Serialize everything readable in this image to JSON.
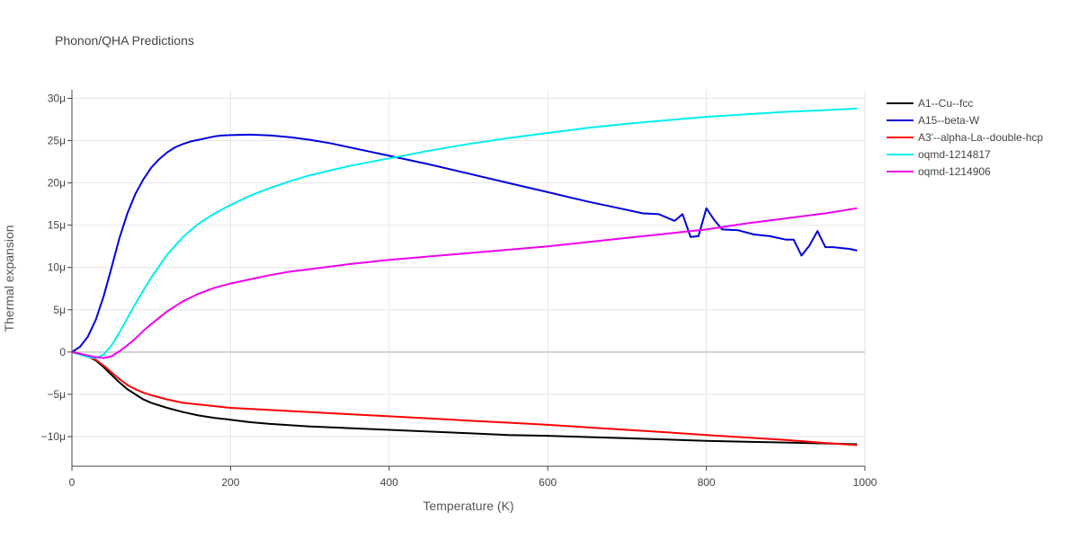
{
  "chart_data": {
    "type": "line",
    "title": "Phonon/QHA Predictions",
    "xlabel": "Temperature (K)",
    "ylabel": "Thermal expansion",
    "xlim": [
      0,
      1000
    ],
    "ylim": [
      -13.5,
      31
    ],
    "x_ticks": [
      0,
      200,
      400,
      600,
      800,
      1000
    ],
    "x_tick_labels": [
      "0",
      "200",
      "400",
      "600",
      "800",
      "1000"
    ],
    "y_ticks": [
      -10,
      -5,
      0,
      5,
      10,
      15,
      20,
      25,
      30
    ],
    "y_tick_labels": [
      "−10μ",
      "−5μ",
      "0",
      "5μ",
      "10μ",
      "15μ",
      "20μ",
      "25μ",
      "30μ"
    ],
    "grid": true,
    "legend_position": "top-right",
    "series": [
      {
        "name": "A1--Cu--fcc",
        "color": "#000000",
        "x": [
          0,
          10,
          20,
          30,
          40,
          50,
          60,
          70,
          80,
          90,
          100,
          120,
          140,
          160,
          180,
          200,
          225,
          250,
          300,
          350,
          400,
          450,
          500,
          550,
          600,
          650,
          700,
          750,
          800,
          850,
          900,
          950,
          990
        ],
        "y": [
          0,
          -0.2,
          -0.5,
          -1.0,
          -1.8,
          -2.7,
          -3.6,
          -4.4,
          -5.0,
          -5.6,
          -6.0,
          -6.6,
          -7.1,
          -7.5,
          -7.8,
          -8.0,
          -8.3,
          -8.5,
          -8.8,
          -9.0,
          -9.2,
          -9.4,
          -9.6,
          -9.8,
          -9.9,
          -10.05,
          -10.2,
          -10.35,
          -10.5,
          -10.6,
          -10.7,
          -10.8,
          -10.9
        ]
      },
      {
        "name": "A15--beta-W",
        "color": "#0000dd",
        "x": [
          0,
          10,
          20,
          30,
          40,
          50,
          60,
          70,
          80,
          90,
          100,
          110,
          120,
          130,
          140,
          150,
          160,
          170,
          180,
          190,
          200,
          225,
          250,
          275,
          300,
          325,
          350,
          375,
          400,
          450,
          500,
          550,
          600,
          650,
          700,
          720,
          740,
          760,
          770,
          780,
          790,
          800,
          810,
          820,
          840,
          860,
          880,
          900,
          910,
          920,
          930,
          940,
          950,
          960,
          970,
          980,
          990
        ],
        "y": [
          0,
          0.6,
          1.8,
          3.8,
          6.6,
          10.0,
          13.5,
          16.4,
          18.7,
          20.4,
          21.8,
          22.8,
          23.6,
          24.2,
          24.6,
          24.9,
          25.1,
          25.3,
          25.5,
          25.6,
          25.65,
          25.7,
          25.6,
          25.4,
          25.1,
          24.7,
          24.2,
          23.7,
          23.2,
          22.2,
          21.1,
          20.0,
          18.9,
          17.8,
          16.8,
          16.4,
          16.3,
          15.5,
          16.3,
          13.6,
          13.7,
          17.0,
          15.6,
          14.5,
          14.4,
          13.9,
          13.7,
          13.3,
          13.3,
          11.4,
          12.6,
          14.3,
          12.4,
          12.4,
          12.3,
          12.2,
          12.0
        ]
      },
      {
        "name": "A3'--alpha-La--double-hcp",
        "color": "#ff0000",
        "x": [
          0,
          10,
          20,
          30,
          40,
          50,
          60,
          70,
          80,
          90,
          100,
          120,
          140,
          160,
          180,
          200,
          250,
          300,
          350,
          400,
          450,
          500,
          550,
          600,
          650,
          700,
          750,
          800,
          850,
          900,
          950,
          990
        ],
        "y": [
          0,
          -0.2,
          -0.5,
          -0.9,
          -1.6,
          -2.4,
          -3.2,
          -3.9,
          -4.4,
          -4.8,
          -5.1,
          -5.6,
          -6.0,
          -6.2,
          -6.4,
          -6.6,
          -6.85,
          -7.1,
          -7.35,
          -7.6,
          -7.85,
          -8.1,
          -8.35,
          -8.6,
          -8.9,
          -9.2,
          -9.5,
          -9.8,
          -10.1,
          -10.4,
          -10.75,
          -11.0
        ]
      },
      {
        "name": "oqmd-1214817",
        "color": "#00eeee",
        "x": [
          0,
          10,
          20,
          30,
          40,
          50,
          60,
          70,
          80,
          90,
          100,
          120,
          140,
          160,
          180,
          200,
          225,
          250,
          275,
          300,
          350,
          400,
          450,
          500,
          550,
          600,
          650,
          700,
          750,
          800,
          850,
          900,
          950,
          990
        ],
        "y": [
          0,
          -0.3,
          -0.6,
          -0.7,
          -0.3,
          0.8,
          2.3,
          4.0,
          5.7,
          7.3,
          8.8,
          11.5,
          13.6,
          15.2,
          16.4,
          17.4,
          18.5,
          19.4,
          20.2,
          20.9,
          22.0,
          22.9,
          23.8,
          24.6,
          25.3,
          25.9,
          26.5,
          27.0,
          27.4,
          27.8,
          28.1,
          28.4,
          28.6,
          28.8
        ]
      },
      {
        "name": "oqmd-1214906",
        "color": "#ee00ee",
        "x": [
          0,
          10,
          20,
          30,
          40,
          50,
          60,
          70,
          80,
          90,
          100,
          120,
          140,
          160,
          180,
          200,
          225,
          250,
          275,
          300,
          350,
          400,
          450,
          500,
          550,
          600,
          650,
          700,
          750,
          800,
          850,
          900,
          950,
          990
        ],
        "y": [
          0,
          -0.2,
          -0.4,
          -0.6,
          -0.7,
          -0.5,
          0.1,
          0.8,
          1.6,
          2.5,
          3.3,
          4.8,
          6.0,
          6.9,
          7.6,
          8.1,
          8.6,
          9.1,
          9.5,
          9.8,
          10.4,
          10.9,
          11.3,
          11.7,
          12.1,
          12.5,
          13.0,
          13.5,
          14.0,
          14.5,
          15.2,
          15.8,
          16.4,
          17.0
        ]
      }
    ]
  }
}
